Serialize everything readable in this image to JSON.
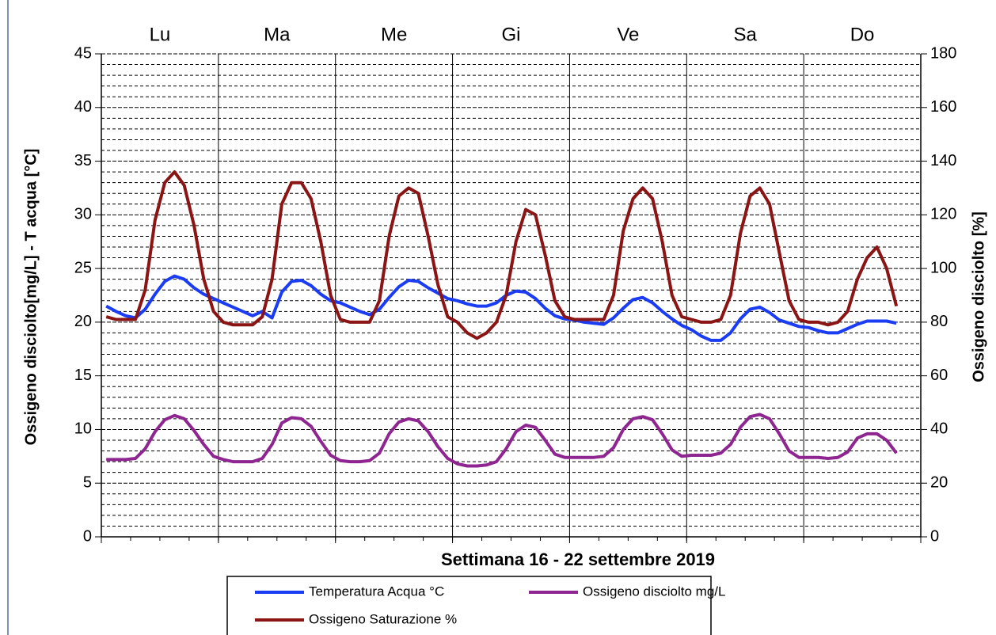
{
  "chart_data": {
    "type": "line",
    "xlabel": "Settimana  16 - 22  settembre  2019",
    "ylabel": "Ossigeno disciolto[mg/L] - T acqua [°C]",
    "y2label": "Ossigeno disciolto [%]",
    "categories": [
      null,
      null,
      null,
      null,
      null,
      null,
      "Lu",
      null,
      null,
      null,
      null,
      null,
      null,
      null,
      null,
      null,
      null,
      null,
      "Ma",
      null,
      null,
      null,
      null,
      null,
      null,
      null,
      null,
      null,
      null,
      null,
      "Me",
      null,
      null,
      null,
      null,
      null,
      null,
      null,
      null,
      null,
      null,
      null,
      "Gi",
      null,
      null,
      null,
      null,
      null,
      null,
      null,
      null,
      null,
      null,
      null,
      "Ve",
      null,
      null,
      null,
      null,
      null,
      null,
      null,
      null,
      null,
      null,
      null,
      "Sa",
      null,
      null,
      null,
      null,
      null,
      null,
      null,
      null,
      null,
      null,
      null,
      "Do",
      null,
      null,
      null,
      null,
      null
    ],
    "ylim": [
      0,
      45
    ],
    "yticks": [
      0,
      5,
      10,
      15,
      20,
      25,
      30,
      35,
      40,
      45
    ],
    "y_minor_ticks": [
      1,
      2,
      3,
      4,
      6,
      7,
      8,
      9,
      11,
      12,
      13,
      14,
      16,
      17,
      18,
      19,
      21,
      22,
      23,
      24,
      26,
      27,
      28,
      29,
      31,
      32,
      33,
      34,
      36,
      37,
      38,
      39,
      41,
      42,
      43,
      44
    ],
    "y2lim": [
      0,
      180
    ],
    "y2ticks": [
      0,
      20,
      40,
      60,
      80,
      100,
      120,
      140,
      160,
      180
    ],
    "grid": true,
    "legend": "bottom",
    "series": [
      {
        "name": "Temperatura Acqua °C",
        "color": "#1a3cf2",
        "values": [
          21.5,
          21.0,
          20.6,
          20.4,
          21.2,
          22.6,
          23.8,
          24.3,
          24.0,
          23.2,
          22.6,
          22.2,
          21.8,
          21.4,
          21.0,
          20.6,
          21.0,
          20.4,
          22.8,
          23.8,
          23.9,
          23.4,
          22.6,
          22.0,
          21.8,
          21.4,
          21.0,
          20.7,
          21.2,
          22.3,
          23.3,
          23.9,
          23.8,
          23.2,
          22.7,
          22.2,
          22.0,
          21.7,
          21.5,
          21.5,
          21.8,
          22.5,
          22.9,
          22.8,
          22.2,
          21.3,
          20.6,
          20.3,
          20.2,
          20.0,
          19.9,
          19.8,
          20.4,
          21.3,
          22.1,
          22.3,
          21.8,
          21.0,
          20.3,
          19.7,
          19.3,
          18.7,
          18.3,
          18.3,
          19.0,
          20.3,
          21.2,
          21.4,
          20.9,
          20.2,
          19.9,
          19.6,
          19.5,
          19.2,
          19.0,
          19.0,
          19.4,
          19.8,
          20.1,
          20.1,
          20.1,
          19.9,
          null,
          null
        ]
      },
      {
        "name": "Ossigeno disciolto mg/L",
        "color": "#8e2590",
        "values": [
          7.2,
          7.2,
          7.2,
          7.3,
          8.2,
          9.8,
          10.9,
          11.3,
          11.0,
          9.9,
          8.6,
          7.5,
          7.2,
          7.0,
          7.0,
          7.0,
          7.3,
          8.6,
          10.6,
          11.1,
          11.0,
          10.3,
          8.9,
          7.6,
          7.1,
          7.0,
          7.0,
          7.1,
          7.8,
          9.6,
          10.7,
          11.0,
          10.8,
          9.8,
          8.4,
          7.3,
          6.8,
          6.6,
          6.6,
          6.7,
          7.0,
          8.2,
          9.8,
          10.4,
          10.2,
          9.0,
          7.7,
          7.4,
          7.4,
          7.4,
          7.4,
          7.5,
          8.3,
          10.0,
          11.0,
          11.2,
          10.9,
          9.6,
          8.1,
          7.5,
          7.6,
          7.6,
          7.6,
          7.8,
          8.6,
          10.2,
          11.2,
          11.4,
          11.0,
          9.6,
          8.0,
          7.4,
          7.4,
          7.4,
          7.3,
          7.4,
          7.9,
          9.2,
          9.6,
          9.6,
          9.0,
          7.8,
          null,
          null
        ]
      },
      {
        "name": "Ossigeno Saturazione %",
        "color": "#8b1414",
        "axis": "y2",
        "values": [
          82,
          81,
          81,
          81,
          92,
          118,
          132,
          136,
          131,
          116,
          96,
          84,
          80,
          79,
          79,
          79,
          82,
          96,
          124,
          132,
          132,
          126,
          110,
          90,
          81,
          80,
          80,
          80,
          88,
          112,
          127,
          130,
          128,
          112,
          94,
          82,
          80,
          76,
          74,
          76,
          80,
          90,
          110,
          122,
          120,
          105,
          88,
          82,
          81,
          81,
          81,
          81,
          90,
          114,
          126,
          130,
          126,
          110,
          90,
          82,
          81,
          80,
          80,
          81,
          90,
          113,
          127,
          130,
          124,
          106,
          88,
          81,
          80,
          80,
          79,
          80,
          84,
          96,
          104,
          108,
          100,
          86,
          null,
          null
        ]
      }
    ]
  }
}
